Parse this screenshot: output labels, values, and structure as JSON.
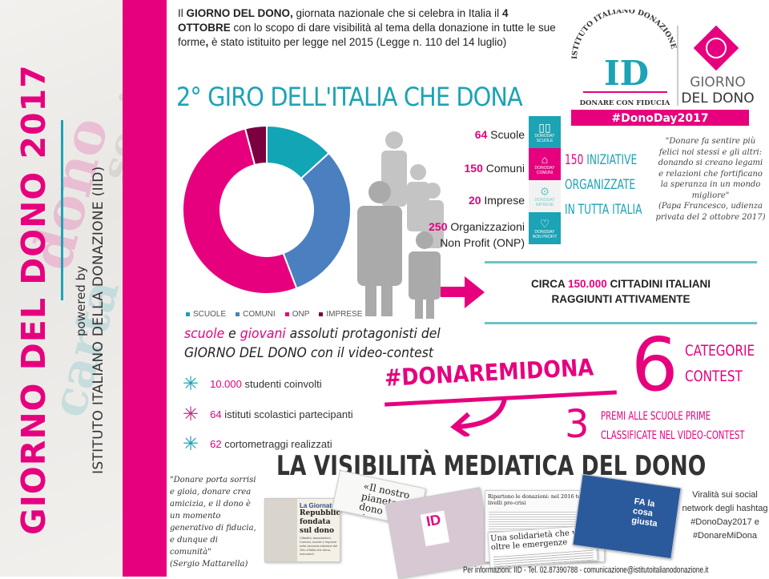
{
  "sidebar": {
    "title": "GIORNO DEL DONO 2017",
    "powered_by": "powered by",
    "organization": "ISTITUTO ITALIANO DELLA DONAZIONE (IID)"
  },
  "intro": {
    "p1": "Il ",
    "b1": "GIORNO DEL DONO,",
    "p2": " giornata nazionale che si celebra in Italia il ",
    "b2": "4 OTTOBRE",
    "p3": " con lo scopo di dare visibilità al tema della donazione in tutte le sue forme",
    "b3": ",",
    "p4": " è stato istituito per legge nel 2015 (Legge n. 110 del 14 luglio)"
  },
  "logo": {
    "arc_text": "ISTITUTO ITALIANO DONAZIONE",
    "monogram": "ID",
    "tagline": "DONARE CON FIDUCIA",
    "event_line1": "GIORNO",
    "event_line2": "DEL DONO",
    "hashtag": "#DonoDay2017"
  },
  "giro_title": "2° GIRO DELL'ITALIA CHE DONA",
  "chart_data": {
    "type": "pie",
    "variant": "donut",
    "categories": [
      "SCUOLE",
      "COMUNI",
      "ONP",
      "IMPRESE"
    ],
    "values": [
      64,
      150,
      250,
      20
    ],
    "colors": [
      "#12a5b5",
      "#4a7fc0",
      "#e6007e",
      "#7a0040"
    ],
    "legend": "bottom"
  },
  "stats": [
    {
      "num": "64",
      "label": " Scuole"
    },
    {
      "num": "150",
      "label": " Comuni"
    },
    {
      "num": "20",
      "label": " Imprese"
    },
    {
      "num": "250",
      "label": " Organizzazioni",
      "label2": "Non Profit (ONP)"
    }
  ],
  "category_icons": [
    {
      "icon": "book-icon",
      "title": "DONODAY",
      "label": "SCUOLE",
      "color": "#1ca3b5"
    },
    {
      "icon": "building-icon",
      "title": "DONODAY",
      "label": "COMUNI",
      "color": "#e6007e"
    },
    {
      "icon": "gears-icon",
      "title": "DONODAY",
      "label": "IMPRESE",
      "color": "#f2f2f2"
    },
    {
      "icon": "heart-icon",
      "title": "DONODAY",
      "label": "NON PROFIT",
      "color": "#1ca3b5"
    }
  ],
  "initiatives": {
    "num": "150",
    "line1": " INIZIATIVE",
    "line2": "ORGANIZZATE",
    "line3": "IN TUTTA ITALIA"
  },
  "papa_quote": {
    "text": "\"Donare fa sentire più felici noi stessi e gli altri: donando si creano legami e relazioni che fortificano la speranza in un mondo migliore\"",
    "source": "(Papa Francesco, udienza privata del 2 ottobre 2017)"
  },
  "reach": {
    "pre": "CIRCA ",
    "num": "150.000",
    "post": " CITTADINI ITALIANI",
    "line2": "RAGGIUNTI ATTIVAMENTE"
  },
  "schools": {
    "w1": "scuole",
    "mid1": " e ",
    "w2": "giovani",
    "mid2": " assoluti protagonisti del",
    "line2a": "GIORNO DEL DONO",
    "line2b": " con il video-contest"
  },
  "bullets": [
    {
      "num": "10.000",
      "text": " studenti coinvolti"
    },
    {
      "num": "64",
      "text": " istituti scolastici partecipanti"
    },
    {
      "num": "62",
      "text": " cortometraggi realizzati"
    }
  ],
  "hashtag_contest": "#DONAREMIDONA",
  "contest": {
    "num": "6",
    "line1": "CATEGORIE",
    "line2": "CONTEST"
  },
  "prizes": {
    "num": "3",
    "line1": "PREMI ALLE SCUOLE PRIME",
    "line2": "CLASSIFICATE NEL VIDEO-CONTEST"
  },
  "media_title": "LA VISIBILITÀ MEDIATICA DEL DONO",
  "mattarella_quote": {
    "text": "\"Donare porta sorrisi e gioia, donare crea amicizia, e il dono è un momento generativo di fiducia, e dunque di comunità\"",
    "source": "(Sergio Mattarella)"
  },
  "clippings": {
    "c1_kicker": "La Giornata",
    "c1_headline": "Repubblica fondata sul dono",
    "c1_body": "Cittadini, associazioni, Comuni, scuole e imprese nella seconda edizione del Giro d'Italia che dona, mercoledì.",
    "c2_headline": "«Il nostro pianeta dono ricevuto da co",
    "c3_headline": "Ripartono le donazioni: nel 2016 tornate ai livelli pre-crisi",
    "c4_headline": "Una solidarietà che va oltre le emergenze",
    "c5_headline": "FA la cosa giusta"
  },
  "viral": "Viralità sui social network degli hashtag #DonoDay2017 e #DonareMiDona",
  "footer": "Per informazioni: IID - Tel. 02.87390788 - comunicazione@istitutoitalianodonazione.it"
}
